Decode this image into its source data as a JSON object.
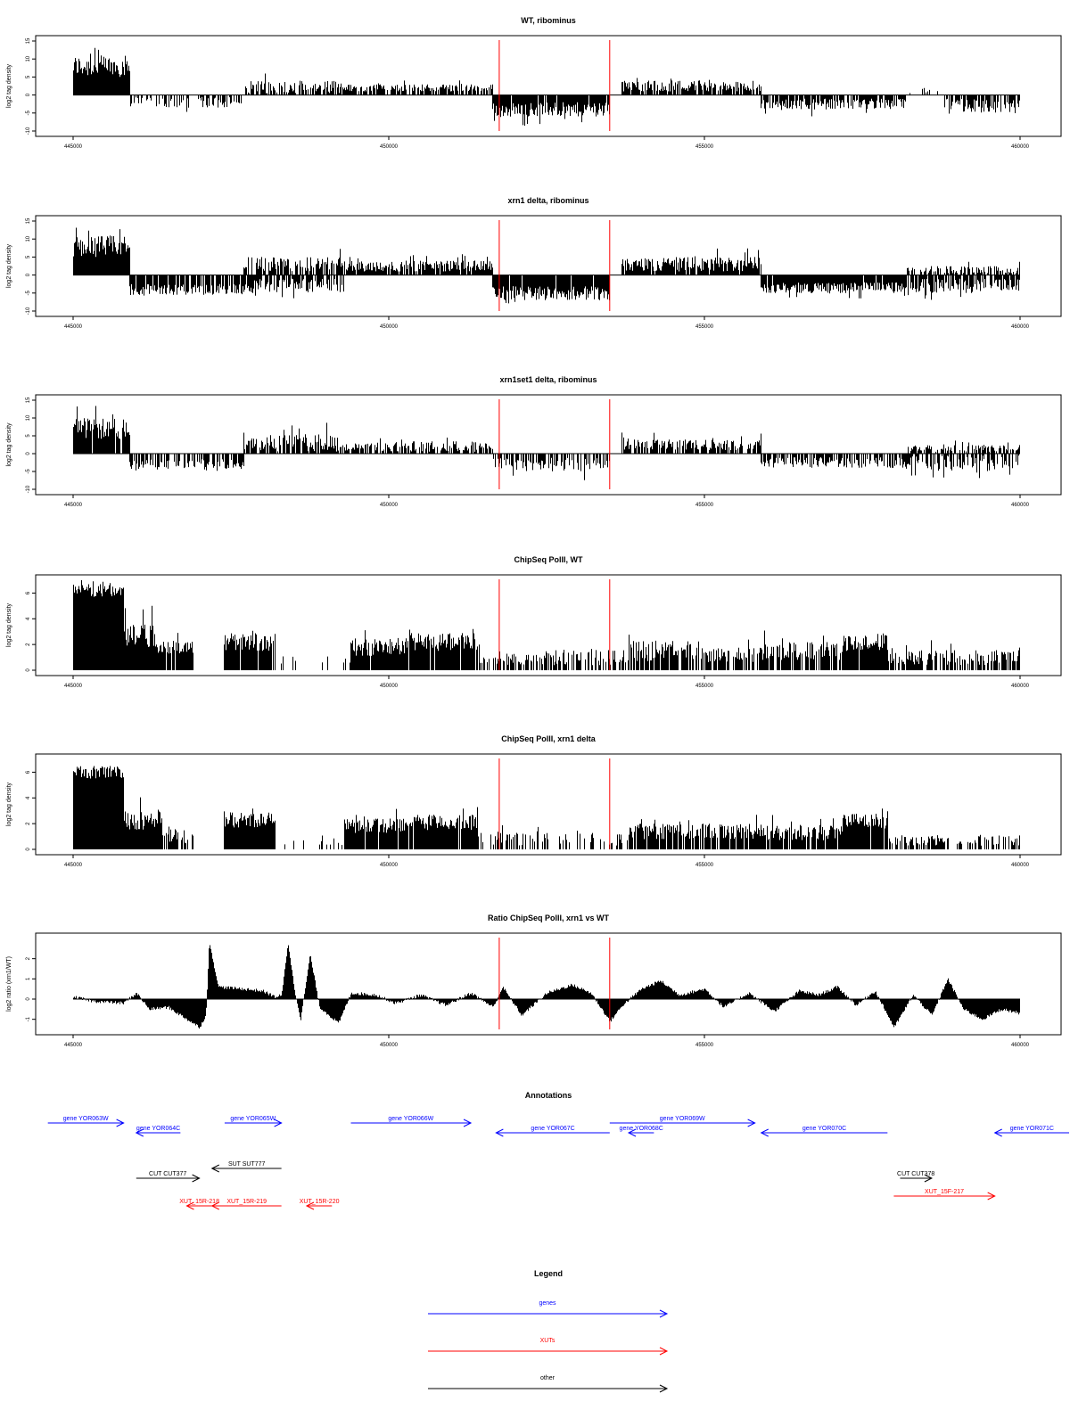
{
  "colors": {
    "genes": "#0000ff",
    "XUTs": "#ff0000",
    "other": "#000000",
    "bars": "#000000",
    "markers": "#ff0000"
  },
  "chart_data": [
    {
      "type": "bar",
      "title": "WT, ribominus",
      "ylabel": "log2 tag density",
      "xlim": [
        445000,
        460000
      ],
      "ylim": [
        -10,
        15
      ],
      "x_ticks": [
        445000,
        450000,
        455000,
        460000
      ],
      "y_ticks": [
        -10,
        -5,
        0,
        5,
        10,
        15
      ],
      "grid": false,
      "red_lines_x": [
        451750,
        453500
      ],
      "segments": [
        {
          "x": [
            445000,
            445900
          ],
          "y": 8,
          "spread": 3,
          "density": 1.0
        },
        {
          "x": [
            445900,
            447700
          ],
          "y": -2,
          "spread": 1.5,
          "density": 0.5
        },
        {
          "x": [
            447700,
            449300
          ],
          "y": 2,
          "spread": 2,
          "density": 0.75
        },
        {
          "x": [
            449300,
            451650
          ],
          "y": 2,
          "spread": 1,
          "density": 0.7
        },
        {
          "x": [
            451650,
            453500
          ],
          "y": -4,
          "spread": 2,
          "density": 0.95
        },
        {
          "x": [
            453700,
            455900
          ],
          "y": 2.5,
          "spread": 1.5,
          "density": 0.85
        },
        {
          "x": [
            455900,
            458200
          ],
          "y": -2.5,
          "spread": 1.5,
          "density": 0.8
        },
        {
          "x": [
            458200,
            458800
          ],
          "y": 1,
          "spread": 1,
          "density": 0.2
        },
        {
          "x": [
            458800,
            460000
          ],
          "y": -3,
          "spread": 2,
          "density": 0.8
        }
      ]
    },
    {
      "type": "bar",
      "title": "xrn1 delta, ribominus",
      "ylabel": "log2 tag density",
      "xlim": [
        445000,
        460000
      ],
      "ylim": [
        -10,
        15
      ],
      "x_ticks": [
        445000,
        450000,
        455000,
        460000
      ],
      "y_ticks": [
        -10,
        -5,
        0,
        5,
        10,
        15
      ],
      "grid": false,
      "red_lines_x": [
        451750,
        453500
      ],
      "segments": [
        {
          "x": [
            445000,
            445900
          ],
          "y": 8,
          "spread": 3,
          "density": 1.0
        },
        {
          "x": [
            445900,
            447700
          ],
          "y": -4,
          "spread": 1.5,
          "density": 0.85
        },
        {
          "x": [
            447700,
            449300
          ],
          "y": -3,
          "spread": 2,
          "density": 0.7
        },
        {
          "x": [
            447700,
            449300
          ],
          "y": 3,
          "spread": 2,
          "density": 0.7
        },
        {
          "x": [
            449300,
            451650
          ],
          "y": 2.5,
          "spread": 1.5,
          "density": 0.9
        },
        {
          "x": [
            451650,
            453500
          ],
          "y": -5,
          "spread": 2,
          "density": 0.95
        },
        {
          "x": [
            453700,
            455900
          ],
          "y": 3,
          "spread": 2,
          "density": 0.95
        },
        {
          "x": [
            455900,
            458200
          ],
          "y": -3.5,
          "spread": 1.5,
          "density": 0.95
        },
        {
          "x": [
            458200,
            460000
          ],
          "y": -3,
          "spread": 2,
          "density": 0.8
        },
        {
          "x": [
            458200,
            460000
          ],
          "y": 1.5,
          "spread": 1,
          "density": 0.6
        }
      ]
    },
    {
      "type": "bar",
      "title": "xrn1set1 delta, ribominus",
      "ylabel": "log2 tag density",
      "xlim": [
        445000,
        460000
      ],
      "ylim": [
        -10,
        15
      ],
      "x_ticks": [
        445000,
        450000,
        455000,
        460000
      ],
      "y_ticks": [
        -10,
        -5,
        0,
        5,
        10,
        15
      ],
      "grid": false,
      "red_lines_x": [
        451750,
        453500
      ],
      "segments": [
        {
          "x": [
            445000,
            445900
          ],
          "y": 7,
          "spread": 3,
          "density": 0.95
        },
        {
          "x": [
            445900,
            447700
          ],
          "y": -3,
          "spread": 1.5,
          "density": 0.6
        },
        {
          "x": [
            447700,
            449300
          ],
          "y": 3,
          "spread": 2.5,
          "density": 0.8
        },
        {
          "x": [
            449300,
            451650
          ],
          "y": 2,
          "spread": 1.5,
          "density": 0.75
        },
        {
          "x": [
            451650,
            453500
          ],
          "y": -3,
          "spread": 2,
          "density": 0.65
        },
        {
          "x": [
            453700,
            455900
          ],
          "y": 2.5,
          "spread": 1.5,
          "density": 0.8
        },
        {
          "x": [
            455900,
            458200
          ],
          "y": -2.5,
          "spread": 1.5,
          "density": 0.7
        },
        {
          "x": [
            458200,
            460000
          ],
          "y": -2.5,
          "spread": 2,
          "density": 0.6
        },
        {
          "x": [
            458200,
            460000
          ],
          "y": 1.5,
          "spread": 1,
          "density": 0.5
        }
      ]
    },
    {
      "type": "bar",
      "title": "ChipSeq PolII, WT",
      "ylabel": "log2 tag density",
      "xlim": [
        445000,
        460000
      ],
      "ylim": [
        0,
        7
      ],
      "x_ticks": [
        445000,
        450000,
        455000,
        460000
      ],
      "y_ticks": [
        0,
        2,
        4,
        6
      ],
      "grid": false,
      "red_lines_x": [
        451750,
        453500
      ],
      "segments": [
        {
          "x": [
            445000,
            445800
          ],
          "y": 6.2,
          "spread": 0.5,
          "density": 1.0
        },
        {
          "x": [
            445800,
            446300
          ],
          "y": 2.8,
          "spread": 1,
          "density": 1.0
        },
        {
          "x": [
            446300,
            446900
          ],
          "y": 1.8,
          "spread": 0.5,
          "density": 0.95
        },
        {
          "x": [
            447400,
            448200
          ],
          "y": 2.2,
          "spread": 0.7,
          "density": 0.95
        },
        {
          "x": [
            448200,
            449400
          ],
          "y": 0.8,
          "spread": 0.3,
          "density": 0.15
        },
        {
          "x": [
            449400,
            450300
          ],
          "y": 1.8,
          "spread": 0.7,
          "density": 0.9
        },
        {
          "x": [
            450300,
            451400
          ],
          "y": 2.2,
          "spread": 0.7,
          "density": 0.95
        },
        {
          "x": [
            451400,
            453800
          ],
          "y": 1,
          "spread": 0.6,
          "density": 0.55
        },
        {
          "x": [
            453800,
            454800
          ],
          "y": 1.5,
          "spread": 0.8,
          "density": 0.85
        },
        {
          "x": [
            454800,
            455900
          ],
          "y": 1.2,
          "spread": 0.6,
          "density": 0.65
        },
        {
          "x": [
            455900,
            457200
          ],
          "y": 1.5,
          "spread": 0.7,
          "density": 0.85
        },
        {
          "x": [
            457200,
            457900
          ],
          "y": 2.2,
          "spread": 0.7,
          "density": 0.95
        },
        {
          "x": [
            457900,
            460000
          ],
          "y": 1,
          "spread": 0.6,
          "density": 0.65
        }
      ]
    },
    {
      "type": "bar",
      "title": "ChipSeq PolII, xrn1 delta",
      "ylabel": "log2 tag density",
      "xlim": [
        445000,
        460000
      ],
      "ylim": [
        0,
        7
      ],
      "x_ticks": [
        445000,
        450000,
        455000,
        460000
      ],
      "y_ticks": [
        0,
        2,
        4,
        6
      ],
      "grid": false,
      "red_lines_x": [
        451750,
        453500
      ],
      "segments": [
        {
          "x": [
            445000,
            445800
          ],
          "y": 6,
          "spread": 0.5,
          "density": 1.0
        },
        {
          "x": [
            445800,
            446400
          ],
          "y": 2.3,
          "spread": 0.8,
          "density": 1.0
        },
        {
          "x": [
            446400,
            446900
          ],
          "y": 1,
          "spread": 0.6,
          "density": 0.7
        },
        {
          "x": [
            447400,
            448200
          ],
          "y": 2.3,
          "spread": 0.6,
          "density": 1.0
        },
        {
          "x": [
            448200,
            449300
          ],
          "y": 0.6,
          "spread": 0.3,
          "density": 0.1
        },
        {
          "x": [
            449300,
            450300
          ],
          "y": 1.8,
          "spread": 0.6,
          "density": 0.95
        },
        {
          "x": [
            450300,
            451400
          ],
          "y": 2.1,
          "spread": 0.6,
          "density": 0.95
        },
        {
          "x": [
            451400,
            453800
          ],
          "y": 0.8,
          "spread": 0.5,
          "density": 0.4
        },
        {
          "x": [
            453800,
            455900
          ],
          "y": 1.4,
          "spread": 0.6,
          "density": 0.85
        },
        {
          "x": [
            455900,
            457200
          ],
          "y": 1.3,
          "spread": 0.6,
          "density": 0.85
        },
        {
          "x": [
            457200,
            457900
          ],
          "y": 2.2,
          "spread": 0.6,
          "density": 0.95
        },
        {
          "x": [
            457900,
            460000
          ],
          "y": 0.7,
          "spread": 0.4,
          "density": 0.55
        }
      ]
    },
    {
      "type": "bar",
      "title": "Ratio ChipSeq PolII, xrn1 vs WT",
      "ylabel": "log2 ratio (xrn1/WT)",
      "xlim": [
        445000,
        460000
      ],
      "ylim": [
        -1.5,
        3
      ],
      "x_ticks": [
        445000,
        450000,
        455000,
        460000
      ],
      "y_ticks": [
        -1,
        0,
        1,
        2
      ],
      "grid": false,
      "red_lines_x": [
        451750,
        453500
      ],
      "profile": [
        [
          445000,
          0.1
        ],
        [
          445300,
          -0.1
        ],
        [
          445800,
          -0.2
        ],
        [
          446000,
          0.3
        ],
        [
          446200,
          -0.5
        ],
        [
          446500,
          -0.4
        ],
        [
          446800,
          -1.0
        ],
        [
          447000,
          -1.4
        ],
        [
          447100,
          -0.8
        ],
        [
          447150,
          2.8
        ],
        [
          447300,
          0.6
        ],
        [
          447700,
          0.5
        ],
        [
          448000,
          0.4
        ],
        [
          448200,
          0.1
        ],
        [
          448300,
          0.2
        ],
        [
          448400,
          2.8
        ],
        [
          448500,
          0.5
        ],
        [
          448600,
          -1.0
        ],
        [
          448750,
          2.2
        ],
        [
          448900,
          -0.4
        ],
        [
          449200,
          -1.2
        ],
        [
          449400,
          0.3
        ],
        [
          449800,
          0.2
        ],
        [
          450100,
          -0.2
        ],
        [
          450500,
          0.2
        ],
        [
          450900,
          -0.3
        ],
        [
          451300,
          0.3
        ],
        [
          451650,
          -0.4
        ],
        [
          451800,
          0.6
        ],
        [
          452100,
          -0.8
        ],
        [
          452500,
          0.3
        ],
        [
          452900,
          0.7
        ],
        [
          453200,
          0.3
        ],
        [
          453500,
          -1.1
        ],
        [
          453700,
          -0.3
        ],
        [
          454000,
          0.5
        ],
        [
          454300,
          0.9
        ],
        [
          454600,
          0.2
        ],
        [
          455000,
          0.5
        ],
        [
          455300,
          -0.4
        ],
        [
          455700,
          0.3
        ],
        [
          456100,
          -0.6
        ],
        [
          456500,
          0.4
        ],
        [
          456800,
          0.2
        ],
        [
          457100,
          0.6
        ],
        [
          457400,
          -0.3
        ],
        [
          457700,
          0.4
        ],
        [
          458000,
          -1.4
        ],
        [
          458300,
          0.2
        ],
        [
          458600,
          -0.8
        ],
        [
          458850,
          1.0
        ],
        [
          459100,
          -0.5
        ],
        [
          459400,
          -1.0
        ],
        [
          459700,
          -0.5
        ],
        [
          460000,
          -0.7
        ]
      ]
    }
  ],
  "annotations": {
    "title": "Annotations",
    "features": [
      {
        "label": "gene YOR063W",
        "class": "genes",
        "dir": "+",
        "row": 0,
        "start": 444600,
        "end": 445800
      },
      {
        "label": "gene YOR064C",
        "class": "genes",
        "dir": "-",
        "row": 1,
        "start": 446000,
        "end": 446700
      },
      {
        "label": "gene YOR065W",
        "class": "genes",
        "dir": "+",
        "row": 0,
        "start": 447400,
        "end": 448300
      },
      {
        "label": "gene YOR066W",
        "class": "genes",
        "dir": "+",
        "row": 0,
        "start": 449400,
        "end": 451300
      },
      {
        "label": "gene YOR067C",
        "class": "genes",
        "dir": "-",
        "row": 1,
        "start": 451700,
        "end": 453500
      },
      {
        "label": "gene YOR068C",
        "class": "genes",
        "dir": "-",
        "row": 1,
        "start": 453800,
        "end": 454200
      },
      {
        "label": "gene YOR069W",
        "class": "genes",
        "dir": "+",
        "row": 0,
        "start": 453500,
        "end": 455800
      },
      {
        "label": "gene YOR070C",
        "class": "genes",
        "dir": "-",
        "row": 1,
        "start": 455900,
        "end": 457900
      },
      {
        "label": "gene YOR071C",
        "class": "genes",
        "dir": "-",
        "row": 1,
        "start": 459600,
        "end": 460900
      },
      {
        "label": "SUT SUT777",
        "class": "other",
        "dir": "-",
        "row": 2,
        "start": 447200,
        "end": 448300
      },
      {
        "label": "CUT CUT377",
        "class": "other",
        "dir": "+",
        "row": 3,
        "start": 446000,
        "end": 447000
      },
      {
        "label": "CUT CUT378",
        "class": "other",
        "dir": "+",
        "row": 3,
        "start": 458100,
        "end": 458600
      },
      {
        "label": "XUT_15R-218",
        "class": "XUTs",
        "dir": "-",
        "row": 5,
        "start": 446800,
        "end": 447200
      },
      {
        "label": "XUT_15R-219",
        "class": "XUTs",
        "dir": "-",
        "row": 5,
        "start": 447200,
        "end": 448300
      },
      {
        "label": "XUT_15R-220",
        "class": "XUTs",
        "dir": "-",
        "row": 5,
        "start": 448700,
        "end": 449100
      },
      {
        "label": "XUT_15F-217",
        "class": "XUTs",
        "dir": "+",
        "row": 4,
        "start": 458000,
        "end": 459600
      }
    ]
  },
  "legend": {
    "title": "Legend",
    "entries": [
      {
        "label": "genes",
        "class": "genes"
      },
      {
        "label": "XUTs",
        "class": "XUTs"
      },
      {
        "label": "other",
        "class": "other"
      }
    ]
  }
}
